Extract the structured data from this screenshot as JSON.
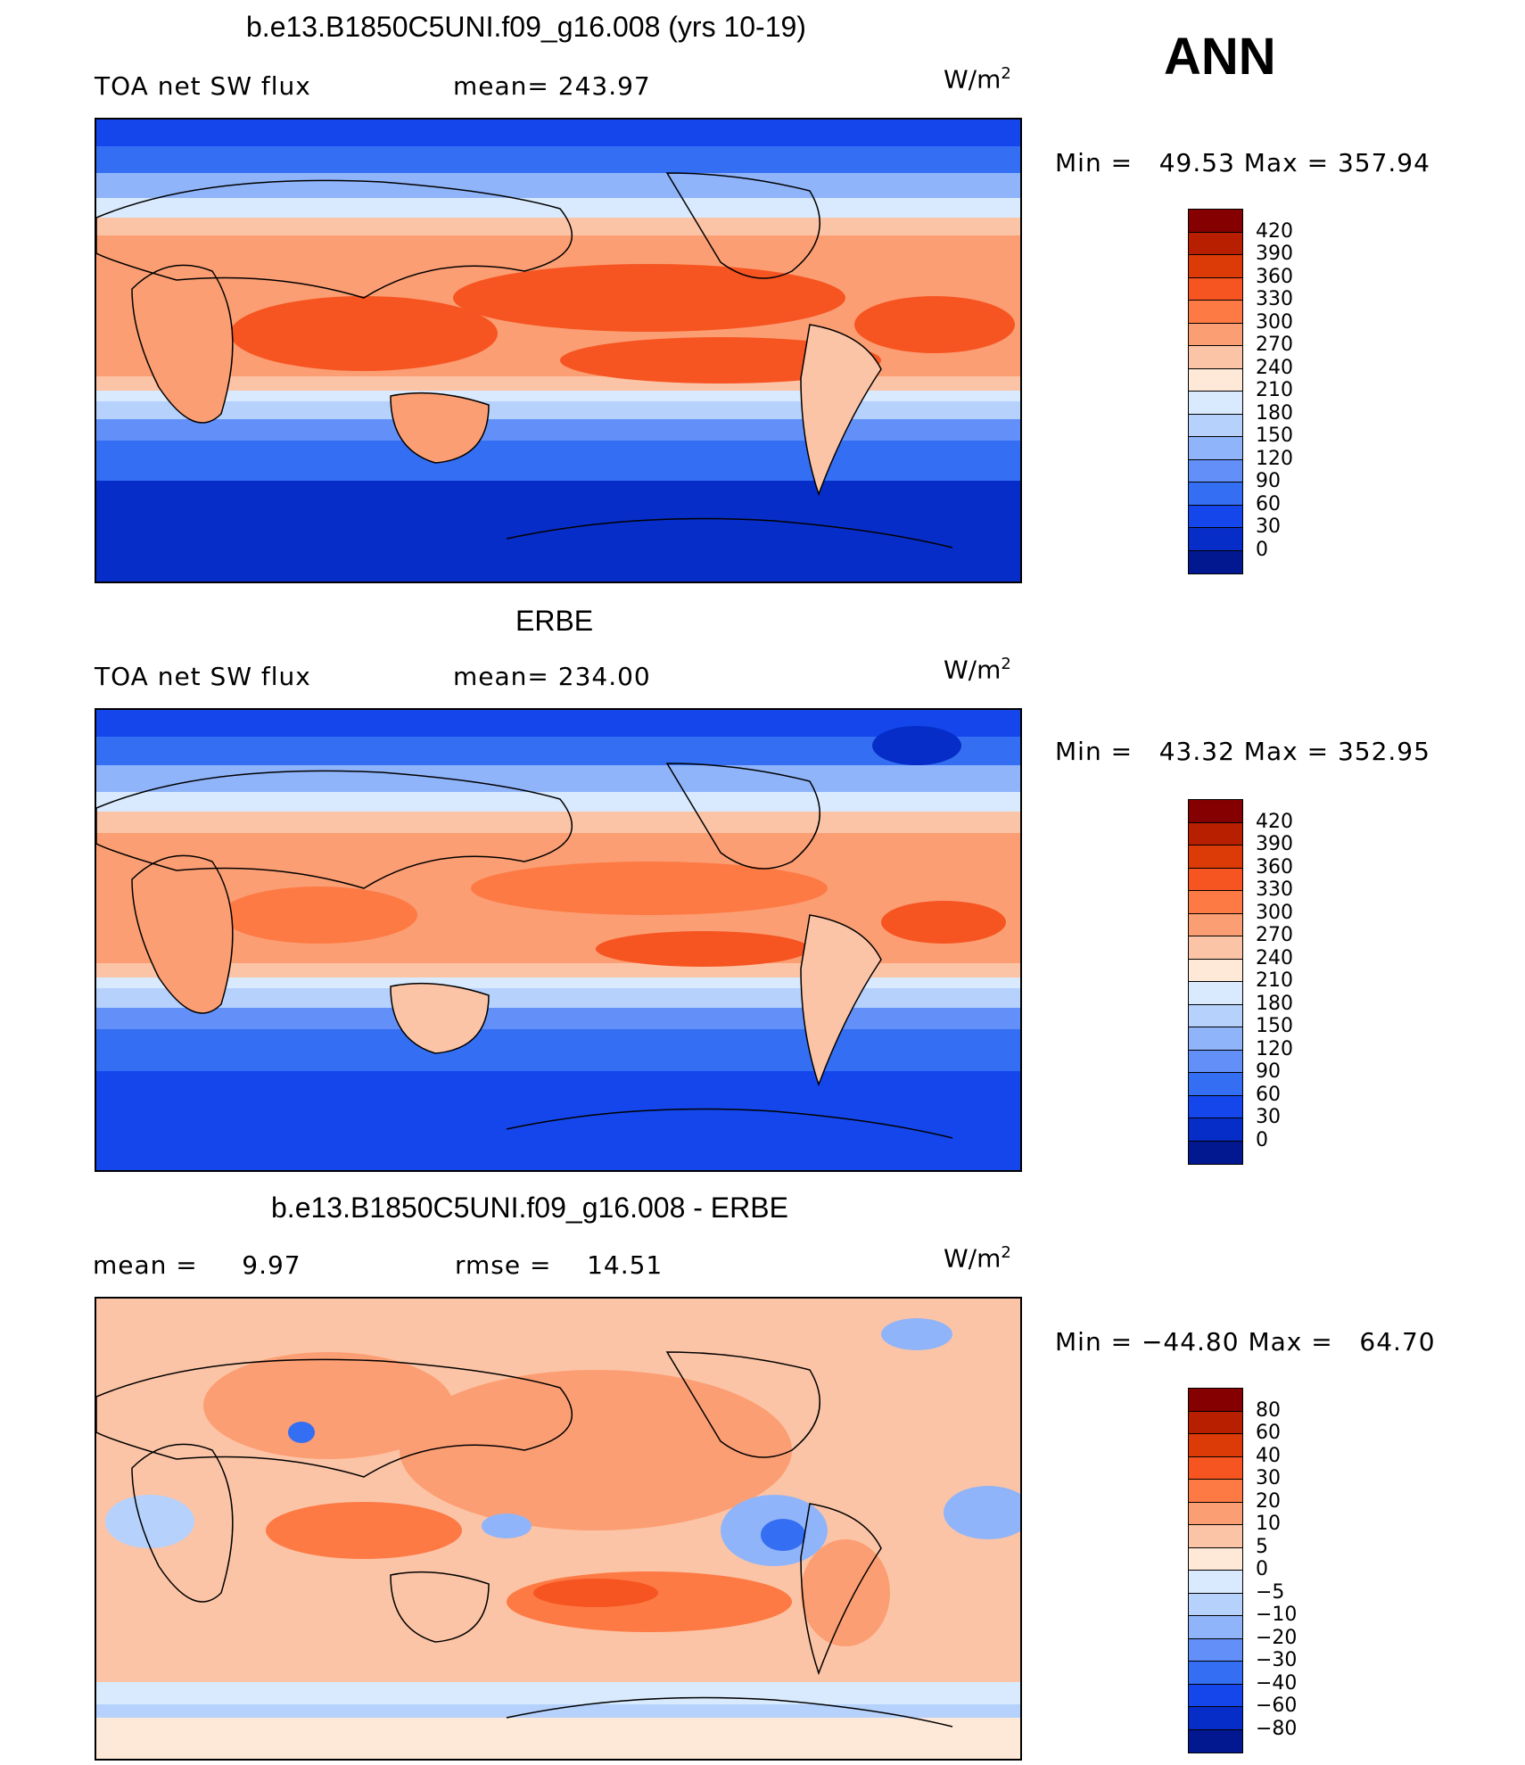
{
  "season": "ANN",
  "units_text": "W/m",
  "units_sup": "2",
  "panels": [
    {
      "title": "b.e13.B1850C5UNI.f09_g16.008 (yrs 10-19)",
      "left_label": "TOA net SW flux",
      "right_label": "mean= 243.97",
      "stats": "Min =   49.53 Max = 357.94",
      "colorbar_labels": [
        "420",
        "390",
        "360",
        "330",
        "300",
        "270",
        "240",
        "210",
        "180",
        "150",
        "120",
        "90",
        "60",
        "30",
        "0"
      ]
    },
    {
      "title": "ERBE",
      "left_label": "TOA net SW flux",
      "right_label": "mean= 234.00",
      "stats": "Min =   43.32 Max = 352.95",
      "colorbar_labels": [
        "420",
        "390",
        "360",
        "330",
        "300",
        "270",
        "240",
        "210",
        "180",
        "150",
        "120",
        "90",
        "60",
        "30",
        "0"
      ]
    },
    {
      "title": "b.e13.B1850C5UNI.f09_g16.008 - ERBE",
      "left_label": "mean =     9.97",
      "right_label": "rmse =    14.51",
      "stats": "Min = −44.80 Max =   64.70",
      "colorbar_labels": [
        "80",
        "60",
        "40",
        "30",
        "20",
        "10",
        "5",
        "0",
        "−5",
        "−10",
        "−20",
        "−30",
        "−40",
        "−60",
        "−80"
      ]
    }
  ],
  "colors": {
    "abs_scale": [
      "#850000",
      "#b81f00",
      "#dc3a07",
      "#f65522",
      "#fd7a45",
      "#fc9e73",
      "#fcc4a6",
      "#fee9d9",
      "#d9eafe",
      "#b5d1fc",
      "#90b4fa",
      "#6290f8",
      "#346ef2",
      "#1446eb",
      "#062dc7",
      "#021890"
    ],
    "diff_scale": [
      "#850000",
      "#b81f00",
      "#dc3a07",
      "#f65522",
      "#fd7a45",
      "#fc9e73",
      "#fcc4a6",
      "#fee9d9",
      "#d9eafe",
      "#b5d1fc",
      "#90b4fa",
      "#6290f8",
      "#346ef2",
      "#1446eb",
      "#062dc7",
      "#021890"
    ]
  }
}
